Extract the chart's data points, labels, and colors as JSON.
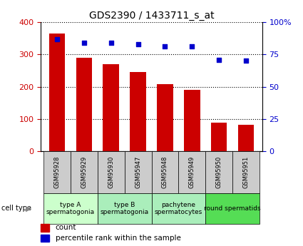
{
  "title": "GDS2390 / 1433711_s_at",
  "samples": [
    "GSM95928",
    "GSM95929",
    "GSM95930",
    "GSM95947",
    "GSM95948",
    "GSM95949",
    "GSM95950",
    "GSM95951"
  ],
  "counts": [
    365,
    290,
    270,
    246,
    207,
    190,
    88,
    82
  ],
  "percentile_ranks": [
    87,
    84,
    84,
    83,
    81,
    81,
    71,
    70
  ],
  "bar_color": "#cc0000",
  "dot_color": "#0000cc",
  "left_ylim": [
    0,
    400
  ],
  "left_yticks": [
    0,
    100,
    200,
    300,
    400
  ],
  "right_ylim": [
    0,
    100
  ],
  "right_yticks": [
    0,
    25,
    50,
    75,
    100
  ],
  "right_yticklabels": [
    "0",
    "25",
    "50",
    "75",
    "100%"
  ],
  "cell_type_groups": [
    {
      "label": "type A\nspermatogonia",
      "samples_idx": [
        0,
        1
      ],
      "color": "#ccffcc"
    },
    {
      "label": "type B\nspermatogonia",
      "samples_idx": [
        2,
        3
      ],
      "color": "#aaeebb"
    },
    {
      "label": "pachytene\nspermatocytes",
      "samples_idx": [
        4,
        5
      ],
      "color": "#aaeebb"
    },
    {
      "label": "round spermatids",
      "samples_idx": [
        6,
        7
      ],
      "color": "#55dd55"
    }
  ],
  "cell_type_label": "cell type",
  "legend_count_label": "count",
  "legend_percentile_label": "percentile rank within the sample",
  "bg_color": "#ffffff",
  "tick_label_color_left": "#cc0000",
  "tick_label_color_right": "#0000cc",
  "sample_box_color": "#cccccc",
  "grid_color": "#000000",
  "title_fontsize": 10,
  "tick_fontsize": 8,
  "sample_fontsize": 6,
  "cell_type_fontsize": 6.5,
  "legend_fontsize": 7.5
}
